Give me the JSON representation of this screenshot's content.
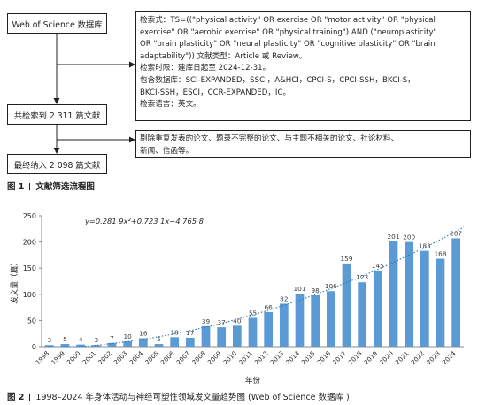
{
  "figure1": {
    "box_database": "Web of Science 数据库",
    "search_lines": [
      "检索式：TS=((\"physical activity\" OR exercise OR \"motor activity\" OR \"physical",
      "exercise\" OR \"aerobic exercise\" OR \"physical training\") AND (\"neuroplasticity\"",
      "OR \"brain plasticity\" OR \"neural plasticity\" OR \"cognitive plasticity\" OR \"brain",
      "adaptability\")) 文献类型：Article 或 Review。",
      "检索时限：建库日起至 2024-12-31。",
      "包含数据库：SCI-EXPANDED，SSCI，A&HCI，CPCI-S，CPCI-SSH，BKCI-S，",
      "BKCI-SSH，ESCI，CCR-EXPANDED，IC。",
      "检索语言：英文。"
    ],
    "box_found": "共检索到 2 311 篇文献",
    "exclude_lines": [
      "剔除重复发表的论文、题录不完整的论文、与主题不相关的论文、社论材料、",
      "新闻、信函等。"
    ],
    "box_final": "最终纳入 2 098 篇文献",
    "caption_label": "图 1",
    "caption_text": "文献筛选流程图"
  },
  "figure2": {
    "caption_label": "图 2",
    "caption_text": "1998–2024 年身体活动与神经可塑性领域发文量趋势图 (Web of Science 数据库 )"
  },
  "chart_data": {
    "type": "bar",
    "categories": [
      "1998",
      "1999",
      "2000",
      "2001",
      "2002",
      "2003",
      "2004",
      "2005",
      "2006",
      "2007",
      "2008",
      "2009",
      "2010",
      "2011",
      "2012",
      "2013",
      "2014",
      "2015",
      "2016",
      "2017",
      "2018",
      "2019",
      "2020",
      "2021",
      "2022",
      "2023",
      "2024"
    ],
    "values": [
      3,
      5,
      4,
      3,
      7,
      10,
      16,
      5,
      18,
      17,
      39,
      37,
      40,
      55,
      66,
      82,
      101,
      98,
      106,
      159,
      123,
      145,
      201,
      200,
      183,
      168,
      207
    ],
    "trendline_equation": "y=0.281 9x²+0.723 1x−4.765 8",
    "trendline_coefficients": {
      "a": 0.2819,
      "b": 0.7231,
      "c": -4.7658
    },
    "xlabel": "年份",
    "ylabel": "发文量（篇）",
    "ylim": [
      0,
      250
    ],
    "yticks": [
      0,
      50,
      100,
      150,
      200,
      250
    ],
    "grid": false,
    "bar_color": "#5b9bd5",
    "trend_color": "#2e75b6"
  }
}
